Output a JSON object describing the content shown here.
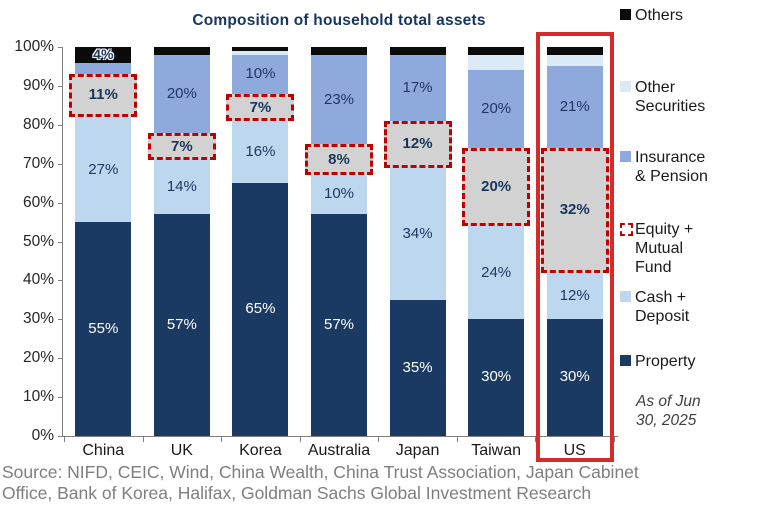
{
  "title": "Composition of household total assets",
  "chart_data": {
    "type": "bar",
    "stacked": true,
    "title": "Composition of household total assets",
    "categories": [
      "China",
      "UK",
      "Korea",
      "Australia",
      "Japan",
      "Taiwan",
      "US"
    ],
    "yticks": [
      "0%",
      "10%",
      "20%",
      "30%",
      "40%",
      "50%",
      "60%",
      "70%",
      "80%",
      "90%",
      "100%"
    ],
    "ylim": [
      0,
      100
    ],
    "grid": false,
    "legend_position": "right",
    "series": [
      {
        "name": "Property",
        "color": "#1B3A63",
        "label_color": "#FFFFFF",
        "label_bold": false,
        "values": [
          55,
          57,
          65,
          57,
          35,
          30,
          30
        ],
        "labels": [
          "55%",
          "57%",
          "65%",
          "57%",
          "35%",
          "30%",
          "30%"
        ]
      },
      {
        "name": "Cash + Deposit",
        "color": "#BDD7EE",
        "label_color": "#1F3864",
        "label_bold": false,
        "values": [
          27,
          14,
          16,
          10,
          34,
          24,
          12
        ],
        "labels": [
          "27%",
          "14%",
          "16%",
          "10%",
          "34%",
          "24%",
          "12%"
        ]
      },
      {
        "name": "Equity + Mutual Fund",
        "color": "#D2D2D2",
        "label_color": "#17365D",
        "label_bold": true,
        "dashed_outline": true,
        "outline_color": "#C00000",
        "values": [
          11,
          7,
          7,
          8,
          12,
          20,
          32
        ],
        "labels": [
          "11%",
          "7%",
          "7%",
          "8%",
          "12%",
          "20%",
          "32%"
        ]
      },
      {
        "name": "Insurance & Pension",
        "color": "#8EA9DB",
        "label_color": "#1F3864",
        "label_bold": false,
        "values": [
          3,
          20,
          10,
          23,
          17,
          20,
          21
        ],
        "labels": [
          "",
          "20%",
          "10%",
          "23%",
          "17%",
          "20%",
          "21%"
        ]
      },
      {
        "name": "Other Securities",
        "color": "#DCE9F7",
        "label_color": "#1F3864",
        "label_bold": false,
        "values": [
          0,
          0,
          1,
          0,
          0,
          4,
          3
        ],
        "labels": [
          "",
          "",
          "",
          "",
          "",
          "",
          ""
        ]
      },
      {
        "name": "Others",
        "color": "#0A0A0A",
        "label_color": "#1F3864",
        "label_bold": true,
        "label_halo": true,
        "values": [
          4,
          2,
          1,
          2,
          2,
          2,
          2
        ],
        "labels": [
          "4%",
          "",
          "",
          "",
          "",
          "",
          ""
        ]
      }
    ],
    "highlight_category": "US",
    "highlight_color": "#D52B2B"
  },
  "legend": {
    "items": [
      {
        "label": "Others",
        "color": "#0A0A0A",
        "swatch": "solid-square"
      },
      {
        "label": "Other\nSecurities",
        "color": "#DCE9F7",
        "swatch": "solid-square"
      },
      {
        "label": "Insurance\n& Pension",
        "color": "#8EA9DB",
        "swatch": "solid-square"
      },
      {
        "label": "Equity +\nMutual\nFund",
        "color": "#C00000",
        "swatch": "dashed-square"
      },
      {
        "label": "Cash +\nDeposit",
        "color": "#BDD7EE",
        "swatch": "solid-square"
      },
      {
        "label": "Property",
        "color": "#1B3A63",
        "swatch": "solid-square"
      }
    ]
  },
  "asof_note": "As of Jun\n30, 2025",
  "source": {
    "line1": "Source: NIFD, CEIC, Wind, China Wealth, China Trust Association, Japan Cabinet",
    "line2": "Office, Bank of Korea, Halifax, Goldman Sachs Global Investment Research"
  }
}
